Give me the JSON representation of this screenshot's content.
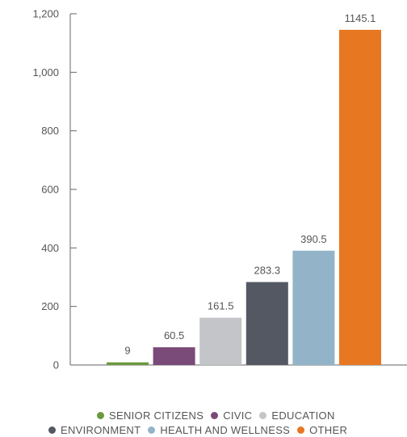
{
  "chart_data": {
    "type": "bar",
    "categories": [
      "SENIOR CITIZENS",
      "CIVIC",
      "EDUCATION",
      "ENVIRONMENT",
      "HEALTH AND WELLNESS",
      "OTHER"
    ],
    "values": [
      9,
      60.5,
      161.5,
      283.3,
      390.5,
      1145.1
    ],
    "data_labels": [
      "9",
      "60.5",
      "161.5",
      "283.3",
      "390.5",
      "1145.1"
    ],
    "colors": [
      "#6a9a3c",
      "#7a4a78",
      "#c4c5c9",
      "#545862",
      "#93b4c8",
      "#e87722"
    ],
    "ylim": [
      0,
      1200
    ],
    "yticks": [
      0,
      200,
      400,
      600,
      800,
      1000,
      1200
    ],
    "ytick_labels": [
      "0",
      "200",
      "400",
      "600",
      "800",
      "1,000",
      "1,200"
    ],
    "grid": false,
    "legend_position": "bottom",
    "title": "",
    "xlabel": "",
    "ylabel": ""
  },
  "legend": {
    "row1": [
      {
        "label": "SENIOR CITIZENS",
        "color": "#6a9a3c"
      },
      {
        "label": "CIVIC",
        "color": "#7a4a78"
      },
      {
        "label": "EDUCATION",
        "color": "#c4c5c9"
      }
    ],
    "row2": [
      {
        "label": "ENVIRONMENT",
        "color": "#545862"
      },
      {
        "label": "HEALTH AND WELLNESS",
        "color": "#93b4c8"
      },
      {
        "label": "OTHER",
        "color": "#e87722"
      }
    ]
  }
}
